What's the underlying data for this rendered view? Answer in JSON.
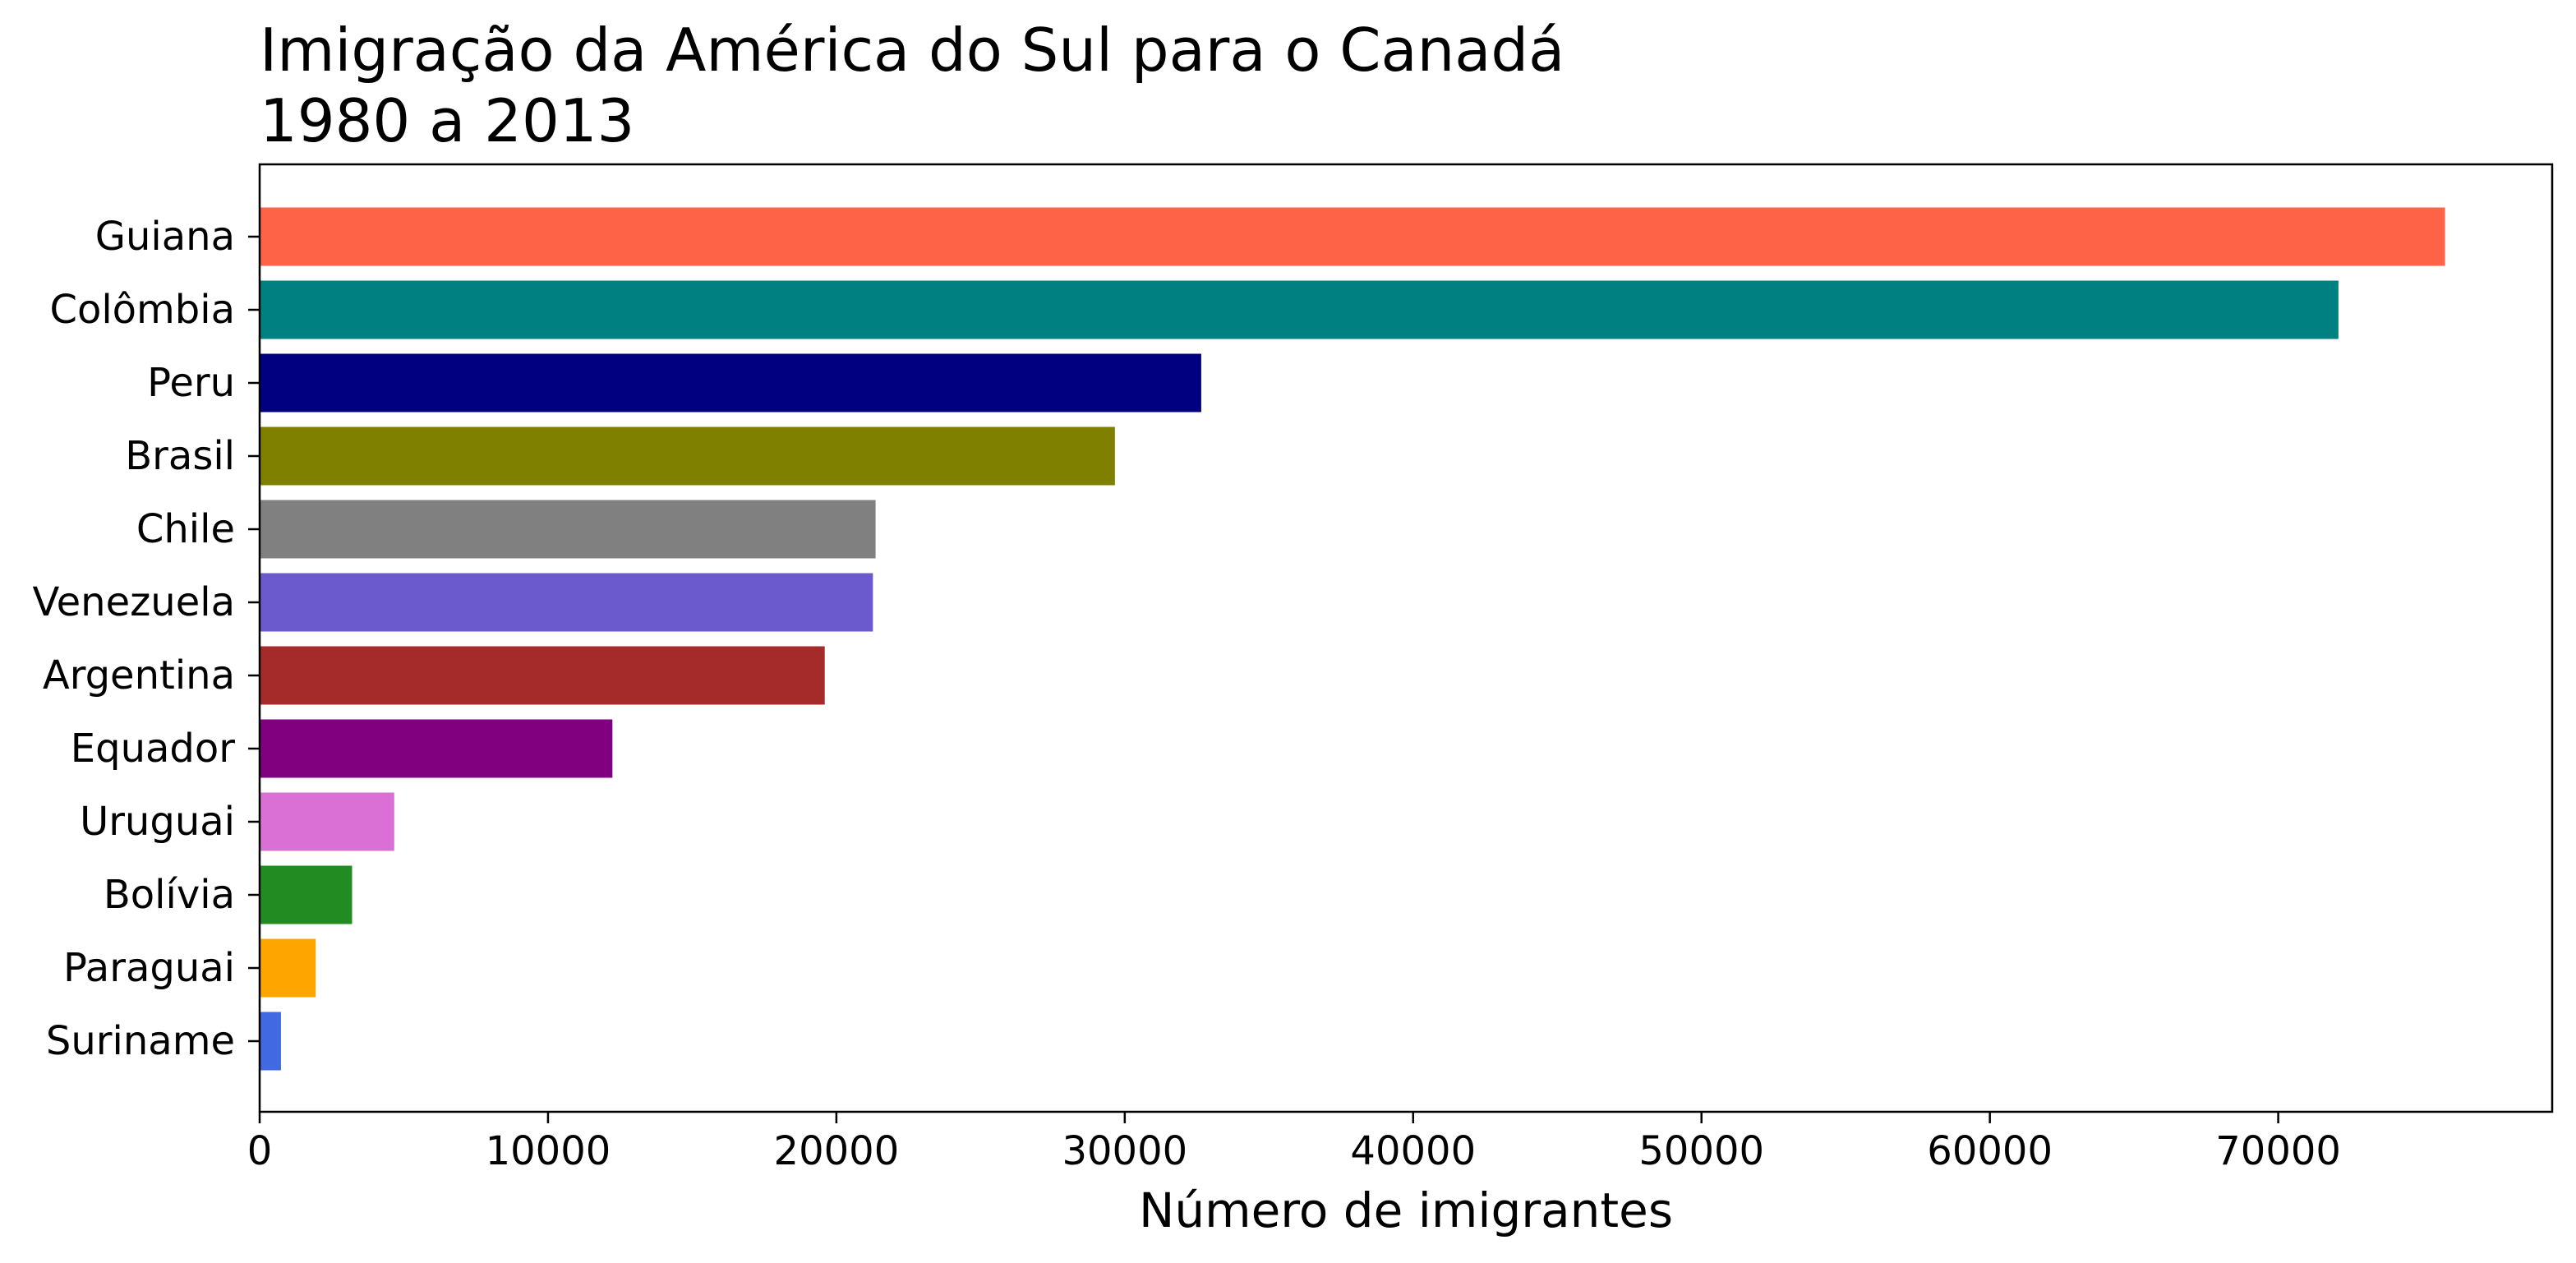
{
  "chart_data": {
    "type": "bar",
    "orientation": "horizontal",
    "title": [
      "Imigração da América do Sul para o Canadá",
      "1980 a 2013"
    ],
    "xlabel": "Número de imigrantes",
    "ylabel": "",
    "xlim": [
      0,
      79500
    ],
    "xticks": [
      0,
      10000,
      20000,
      30000,
      40000,
      50000,
      60000,
      70000
    ],
    "xtick_labels": [
      "0",
      "10000",
      "20000",
      "30000",
      "40000",
      "50000",
      "60000",
      "70000"
    ],
    "grid": false,
    "categories": [
      "Guiana",
      "Colômbia",
      "Peru",
      "Brasil",
      "Chile",
      "Venezuela",
      "Argentina",
      "Equador",
      "Uruguai",
      "Bolívia",
      "Paraguai",
      "Suriname"
    ],
    "values": [
      75785,
      72088,
      32652,
      29659,
      21359,
      21267,
      19596,
      12233,
      4666,
      3205,
      1944,
      739
    ],
    "colors": [
      "#ff6347",
      "#008080",
      "#000080",
      "#808000",
      "#808080",
      "#6a5acd",
      "#a52a2a",
      "#800080",
      "#da70d6",
      "#228b22",
      "#ffa500",
      "#4169e1"
    ]
  }
}
